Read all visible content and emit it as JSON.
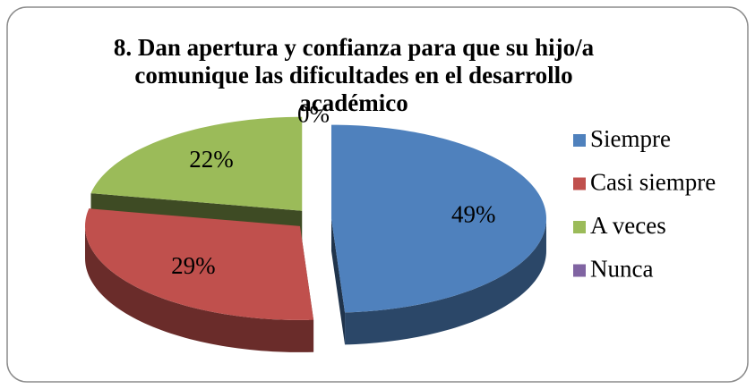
{
  "chart_data": {
    "type": "pie3d",
    "title": "8. Dan apertura y confianza para que su hijo/a comunique las dificultades en el desarrollo académico",
    "categories": [
      "Siempre",
      "Casi siempre",
      "A veces",
      "Nunca"
    ],
    "values": [
      49,
      29,
      22,
      0
    ],
    "value_labels": [
      "49%",
      "29%",
      "22%",
      "0%"
    ],
    "colors": [
      "#4f81bd",
      "#c0504d",
      "#9bbb59",
      "#8064a2"
    ],
    "legend": "right"
  }
}
